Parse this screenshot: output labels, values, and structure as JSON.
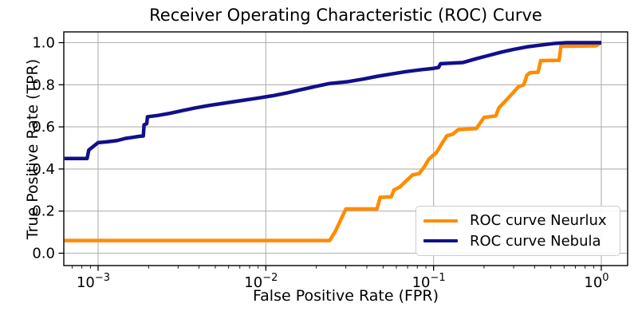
{
  "title": "Receiver Operating Characteristic (ROC) Curve",
  "xlabel": "False Positive Rate (FPR)",
  "ylabel": "True Positive Rate (TPR)",
  "legend": {
    "items": [
      {
        "label": "ROC curve Neurlux",
        "color": "#ff8c00"
      },
      {
        "label": "ROC curve Nebula",
        "color": "#10108a"
      }
    ]
  },
  "colors": {
    "grid": "#b0b0b0",
    "spine": "#000000",
    "tick_label": "#000000",
    "background": "#ffffff",
    "neurlux": "#ff8c00",
    "nebula": "#10108a"
  },
  "chart_data": {
    "type": "line",
    "title": "Receiver Operating Characteristic (ROC) Curve",
    "xlabel": "False Positive Rate (FPR)",
    "ylabel": "True Positive Rate (TPR)",
    "x_scale": "log",
    "grid": true,
    "legend_position": "lower right",
    "x_ticks": [
      {
        "base": "10",
        "exp": "−3",
        "value": 0.001
      },
      {
        "base": "10",
        "exp": "−2",
        "value": 0.01
      },
      {
        "base": "10",
        "exp": "−1",
        "value": 0.1
      },
      {
        "base": "10",
        "exp": "0",
        "value": 1.0
      }
    ],
    "y_ticks": [
      {
        "label": "0.0",
        "value": 0.0
      },
      {
        "label": "0.2",
        "value": 0.2
      },
      {
        "label": "0.4",
        "value": 0.4
      },
      {
        "label": "0.6",
        "value": 0.6
      },
      {
        "label": "0.8",
        "value": 0.8
      },
      {
        "label": "1.0",
        "value": 1.0
      }
    ],
    "xlim_log10": [
      -3.2045,
      0.157
    ],
    "ylim": [
      -0.059,
      1.053
    ],
    "series": [
      {
        "name": "ROC curve Neurlux",
        "color": "#ff8c00",
        "points": [
          [
            0.00063,
            0.06
          ],
          [
            0.024,
            0.06
          ],
          [
            0.026,
            0.105
          ],
          [
            0.03,
            0.21
          ],
          [
            0.046,
            0.21
          ],
          [
            0.048,
            0.265
          ],
          [
            0.056,
            0.268
          ],
          [
            0.058,
            0.3
          ],
          [
            0.063,
            0.315
          ],
          [
            0.069,
            0.345
          ],
          [
            0.075,
            0.372
          ],
          [
            0.082,
            0.378
          ],
          [
            0.088,
            0.41
          ],
          [
            0.094,
            0.448
          ],
          [
            0.104,
            0.478
          ],
          [
            0.112,
            0.52
          ],
          [
            0.12,
            0.558
          ],
          [
            0.13,
            0.565
          ],
          [
            0.14,
            0.587
          ],
          [
            0.18,
            0.592
          ],
          [
            0.2,
            0.645
          ],
          [
            0.235,
            0.652
          ],
          [
            0.245,
            0.69
          ],
          [
            0.26,
            0.712
          ],
          [
            0.29,
            0.752
          ],
          [
            0.32,
            0.79
          ],
          [
            0.345,
            0.8
          ],
          [
            0.36,
            0.845
          ],
          [
            0.375,
            0.857
          ],
          [
            0.42,
            0.86
          ],
          [
            0.435,
            0.915
          ],
          [
            0.56,
            0.916
          ],
          [
            0.575,
            0.983
          ],
          [
            0.93,
            0.985
          ],
          [
            1.0,
            1.0
          ]
        ]
      },
      {
        "name": "ROC curve Nebula",
        "color": "#10108a",
        "points": [
          [
            0.00063,
            0.45
          ],
          [
            0.00086,
            0.45
          ],
          [
            0.00088,
            0.49
          ],
          [
            0.001,
            0.525
          ],
          [
            0.00115,
            0.53
          ],
          [
            0.0013,
            0.535
          ],
          [
            0.00145,
            0.545
          ],
          [
            0.0016,
            0.55
          ],
          [
            0.00175,
            0.555
          ],
          [
            0.00186,
            0.557
          ],
          [
            0.00188,
            0.61
          ],
          [
            0.00195,
            0.615
          ],
          [
            0.00197,
            0.648
          ],
          [
            0.0023,
            0.655
          ],
          [
            0.0027,
            0.665
          ],
          [
            0.0032,
            0.678
          ],
          [
            0.0038,
            0.69
          ],
          [
            0.0046,
            0.702
          ],
          [
            0.0056,
            0.712
          ],
          [
            0.007,
            0.724
          ],
          [
            0.0087,
            0.735
          ],
          [
            0.011,
            0.748
          ],
          [
            0.0135,
            0.762
          ],
          [
            0.0165,
            0.778
          ],
          [
            0.02,
            0.793
          ],
          [
            0.024,
            0.806
          ],
          [
            0.031,
            0.815
          ],
          [
            0.038,
            0.827
          ],
          [
            0.046,
            0.84
          ],
          [
            0.056,
            0.851
          ],
          [
            0.068,
            0.862
          ],
          [
            0.083,
            0.871
          ],
          [
            0.1,
            0.878
          ],
          [
            0.107,
            0.882
          ],
          [
            0.11,
            0.9
          ],
          [
            0.15,
            0.906
          ],
          [
            0.18,
            0.924
          ],
          [
            0.21,
            0.938
          ],
          [
            0.25,
            0.954
          ],
          [
            0.3,
            0.968
          ],
          [
            0.36,
            0.98
          ],
          [
            0.43,
            0.988
          ],
          [
            0.52,
            0.996
          ],
          [
            0.62,
            1.0
          ],
          [
            1.0,
            1.0
          ]
        ]
      }
    ]
  }
}
